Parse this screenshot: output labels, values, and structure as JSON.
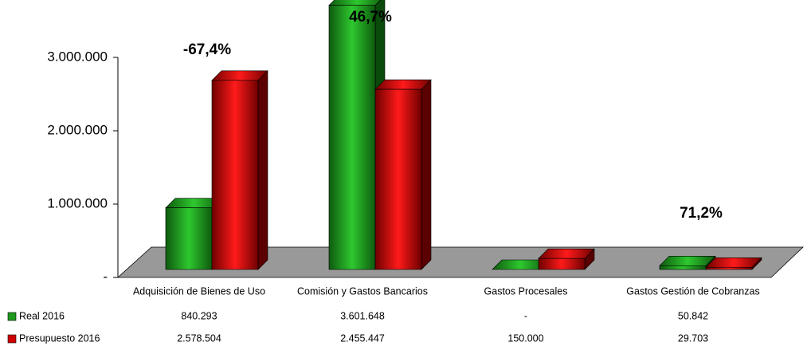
{
  "chart_data": {
    "type": "bar3d",
    "categories": [
      "Adquisición de Bienes de Uso",
      "Comisión y Gastos Bancarios",
      "Gastos Procesales",
      "Gastos Gestión de Cobranzas"
    ],
    "series": [
      {
        "name": "Real 2016",
        "color": "#1f9a1f",
        "values": [
          840293,
          3601648,
          0,
          50842
        ],
        "value_labels": [
          "840.293",
          "3.601.648",
          "-",
          "50.842"
        ]
      },
      {
        "name": "Presupuesto 2016",
        "color": "#d00000",
        "values": [
          2578504,
          2455447,
          150000,
          29703
        ],
        "value_labels": [
          "2.578.504",
          "2.455.447",
          "150.000",
          "29.703"
        ]
      }
    ],
    "annotations": [
      "-67,4%",
      "46,7%",
      null,
      "71,2%"
    ],
    "ylim": [
      0,
      3000000
    ],
    "yticks": [
      {
        "value": 0,
        "label": "-"
      },
      {
        "value": 1000000,
        "label": "1.000.000"
      },
      {
        "value": 2000000,
        "label": "2.000.000"
      },
      {
        "value": 3000000,
        "label": "3.000.000"
      }
    ]
  }
}
